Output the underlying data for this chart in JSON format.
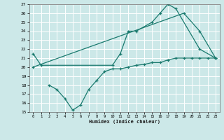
{
  "xlabel": "Humidex (Indice chaleur)",
  "bg_color": "#cce8e8",
  "grid_color": "#ffffff",
  "line_color": "#1a7a6e",
  "ylim": [
    15,
    27
  ],
  "xlim": [
    -0.5,
    23.5
  ],
  "yticks": [
    15,
    16,
    17,
    18,
    19,
    20,
    21,
    22,
    23,
    24,
    25,
    26,
    27
  ],
  "xticks": [
    0,
    1,
    2,
    3,
    4,
    5,
    6,
    7,
    8,
    9,
    10,
    11,
    12,
    13,
    14,
    15,
    16,
    17,
    18,
    19,
    20,
    21,
    22,
    23
  ],
  "curve1_x": [
    0,
    1,
    10,
    11,
    12,
    13,
    15,
    16,
    17,
    18,
    21,
    23
  ],
  "curve1_y": [
    21.5,
    20.2,
    20.2,
    21.5,
    24.0,
    24.0,
    25.0,
    26.0,
    27.0,
    26.5,
    22.0,
    21.0
  ],
  "curve2_x": [
    0,
    19,
    21,
    23
  ],
  "curve2_y": [
    20.0,
    26.0,
    24.0,
    21.0
  ],
  "curve3_x": [
    2,
    3,
    4,
    5,
    6,
    7,
    8,
    9,
    10,
    11,
    12,
    13,
    14,
    15,
    16,
    17,
    18,
    19,
    20,
    21,
    22,
    23
  ],
  "curve3_y": [
    18.0,
    17.5,
    16.5,
    15.2,
    15.8,
    17.5,
    18.5,
    19.5,
    19.8,
    19.8,
    20.0,
    20.2,
    20.3,
    20.5,
    20.5,
    20.8,
    21.0,
    21.0,
    21.0,
    21.0,
    21.0,
    21.0
  ]
}
